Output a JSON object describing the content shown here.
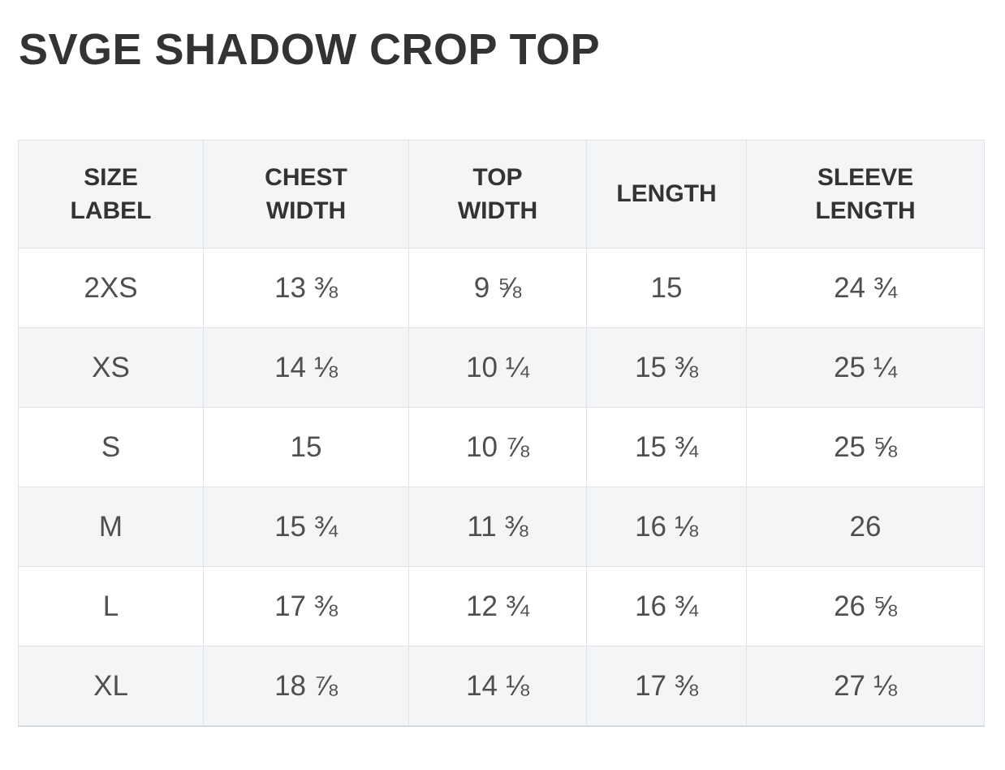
{
  "page_title": "SVGE SHADOW CROP TOP",
  "size_chart": {
    "columns": [
      "SIZE\nLABEL",
      "CHEST\nWIDTH",
      "TOP\nWIDTH",
      "LENGTH",
      "SLEEVE\nLENGTH"
    ],
    "rows": [
      [
        "2XS",
        "13 ⅜",
        "9 ⅝",
        "15",
        "24 ¾"
      ],
      [
        "XS",
        "14 ⅛",
        "10 ¼",
        "15 ⅜",
        "25 ¼"
      ],
      [
        "S",
        "15",
        "10 ⅞",
        "15 ¾",
        "25 ⅝"
      ],
      [
        "M",
        "15 ¾",
        "11 ⅜",
        "16 ⅛",
        "26"
      ],
      [
        "L",
        "17 ⅜",
        "12 ¾",
        "16 ¾",
        "26 ⅝"
      ],
      [
        "XL",
        "18 ⅞",
        "14 ⅛",
        "17 ⅜",
        "27 ⅛"
      ]
    ]
  },
  "colors": {
    "title_text": "#333333",
    "header_text": "#333333",
    "cell_text": "#4f4f4f",
    "header_bg": "#f4f5f7",
    "row_stripe_bg": "#f4f5f7",
    "border": "#dfe2e6",
    "border_bottom": "#d6dade",
    "page_bg": "#ffffff"
  }
}
